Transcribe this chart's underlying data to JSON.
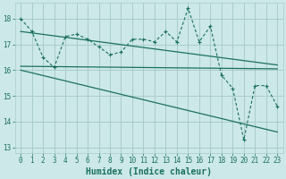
{
  "background_color": "#cce8e8",
  "grid_color": "#aacccc",
  "line_color": "#1a7060",
  "xlabel": "Humidex (Indice chaleur)",
  "xlim": [
    -0.5,
    23.5
  ],
  "ylim": [
    12.8,
    18.6
  ],
  "yticks": [
    13,
    14,
    15,
    16,
    17,
    18
  ],
  "xticks": [
    0,
    1,
    2,
    3,
    4,
    5,
    6,
    7,
    8,
    9,
    10,
    11,
    12,
    13,
    14,
    15,
    16,
    17,
    18,
    19,
    20,
    21,
    22,
    23
  ],
  "series1_x": [
    0,
    1,
    2,
    3,
    4,
    5,
    6,
    7,
    8,
    9,
    10,
    11,
    12,
    13,
    14,
    15,
    16,
    17,
    18,
    19,
    20,
    21,
    22,
    23
  ],
  "series1_y": [
    18.0,
    17.5,
    16.5,
    16.1,
    17.3,
    17.4,
    17.2,
    16.9,
    16.6,
    16.7,
    17.2,
    17.2,
    17.1,
    17.5,
    17.1,
    18.4,
    17.1,
    17.7,
    15.8,
    15.3,
    13.3,
    15.4,
    15.4,
    14.6
  ],
  "series2_x": [
    0,
    23
  ],
  "series2_y": [
    17.5,
    16.2
  ],
  "series3_x": [
    0,
    23
  ],
  "series3_y": [
    16.15,
    16.05
  ],
  "series4_x": [
    0,
    23
  ],
  "series4_y": [
    16.0,
    13.6
  ],
  "tick_fontsize": 5.5,
  "label_fontsize": 7.0
}
